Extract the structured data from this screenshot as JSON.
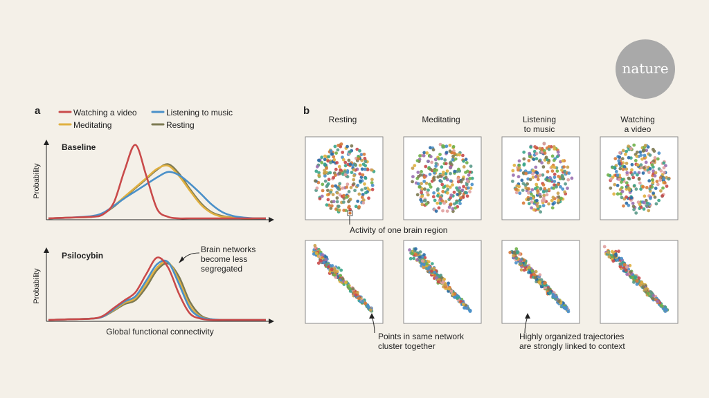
{
  "logo": {
    "text": "nature"
  },
  "colors": {
    "background": "#f4f0e8",
    "video": "#c94a4a",
    "music": "#4a90c9",
    "meditating": "#e0b040",
    "resting": "#7d7a52"
  },
  "panel_a": {
    "label": "a",
    "legend": {
      "video": "Watching a video",
      "music": "Listening to music",
      "meditating": "Meditating",
      "resting": "Resting"
    },
    "xlabel": "Global functional connectivity",
    "ylabel": "Probability",
    "baseline_title": "Baseline",
    "psilocybin_title": "Psilocybin",
    "annotation": [
      "Brain networks",
      "become less",
      "segregated"
    ]
  },
  "panel_b": {
    "label": "b",
    "columns": [
      [
        "Resting"
      ],
      [
        "Meditating"
      ],
      [
        "Listening",
        "to music"
      ],
      [
        "Watching",
        "a video"
      ]
    ],
    "annotation_region": "Activity of one brain region",
    "annotation_cluster": [
      "Points in same network",
      "cluster together"
    ],
    "annotation_traj": [
      "Highly organized trajectories",
      "are strongly linked to context"
    ],
    "point_colors": [
      "#c94a4a",
      "#4a90c9",
      "#e0b040",
      "#7d7a52",
      "#3aa58a",
      "#d87a3a",
      "#9a6fb0",
      "#6fb04a",
      "#2a6aa5",
      "#e0a0a0",
      "#c9a04a",
      "#5a9a8a"
    ]
  },
  "chart_data": [
    {
      "type": "line",
      "title": "Baseline",
      "xlabel": "Global functional connectivity",
      "ylabel": "Probability",
      "x": [
        0.0,
        0.1,
        0.2,
        0.25,
        0.3,
        0.35,
        0.4,
        0.45,
        0.5,
        0.55,
        0.6,
        0.65,
        0.7,
        0.75,
        0.8,
        0.85,
        0.9,
        0.95,
        1.0
      ],
      "series": [
        {
          "name": "Watching a video",
          "values": [
            0,
            0.01,
            0.02,
            0.05,
            0.2,
            0.62,
            0.95,
            0.55,
            0.12,
            0.02,
            0,
            0,
            0,
            0,
            0,
            0,
            0,
            0,
            0
          ]
        },
        {
          "name": "Listening to music",
          "values": [
            0,
            0.01,
            0.03,
            0.07,
            0.16,
            0.26,
            0.35,
            0.44,
            0.53,
            0.6,
            0.56,
            0.45,
            0.32,
            0.18,
            0.08,
            0.03,
            0.01,
            0,
            0
          ]
        },
        {
          "name": "Meditating",
          "values": [
            0,
            0.01,
            0.02,
            0.06,
            0.16,
            0.28,
            0.4,
            0.52,
            0.64,
            0.68,
            0.55,
            0.36,
            0.18,
            0.07,
            0.02,
            0.01,
            0,
            0,
            0
          ]
        },
        {
          "name": "Resting",
          "values": [
            0,
            0.01,
            0.02,
            0.06,
            0.15,
            0.27,
            0.39,
            0.51,
            0.63,
            0.7,
            0.58,
            0.38,
            0.2,
            0.08,
            0.03,
            0.01,
            0,
            0,
            0
          ]
        }
      ]
    },
    {
      "type": "line",
      "title": "Psilocybin",
      "xlabel": "Global functional connectivity",
      "ylabel": "Probability",
      "x": [
        0.0,
        0.1,
        0.2,
        0.25,
        0.3,
        0.35,
        0.4,
        0.45,
        0.5,
        0.55,
        0.6,
        0.65,
        0.7,
        0.75,
        0.8,
        0.85,
        0.9,
        0.95,
        1.0
      ],
      "series": [
        {
          "name": "Watching a video",
          "values": [
            0,
            0.01,
            0.02,
            0.06,
            0.18,
            0.3,
            0.42,
            0.7,
            0.95,
            0.8,
            0.4,
            0.1,
            0.02,
            0,
            0,
            0,
            0,
            0,
            0
          ]
        },
        {
          "name": "Listening to music",
          "values": [
            0,
            0.01,
            0.02,
            0.05,
            0.16,
            0.28,
            0.36,
            0.6,
            0.85,
            0.88,
            0.55,
            0.18,
            0.04,
            0.01,
            0,
            0,
            0,
            0,
            0
          ]
        },
        {
          "name": "Meditating",
          "values": [
            0,
            0.01,
            0.02,
            0.05,
            0.15,
            0.26,
            0.33,
            0.55,
            0.8,
            0.88,
            0.6,
            0.22,
            0.05,
            0.01,
            0,
            0,
            0,
            0,
            0
          ]
        },
        {
          "name": "Resting",
          "values": [
            0,
            0.01,
            0.02,
            0.05,
            0.14,
            0.24,
            0.3,
            0.5,
            0.76,
            0.86,
            0.66,
            0.28,
            0.07,
            0.01,
            0,
            0,
            0,
            0,
            0
          ]
        }
      ]
    },
    {
      "type": "scatter",
      "title": "",
      "rows": [
        "Baseline",
        "Psilocybin"
      ],
      "columns": [
        "Resting",
        "Meditating",
        "Listening to music",
        "Watching a video"
      ],
      "points_per_panel": 240,
      "baseline_shape": "diffuse-cloud",
      "psilocybin_shape": "diagonal-cluster-toward-lower-right"
    }
  ]
}
